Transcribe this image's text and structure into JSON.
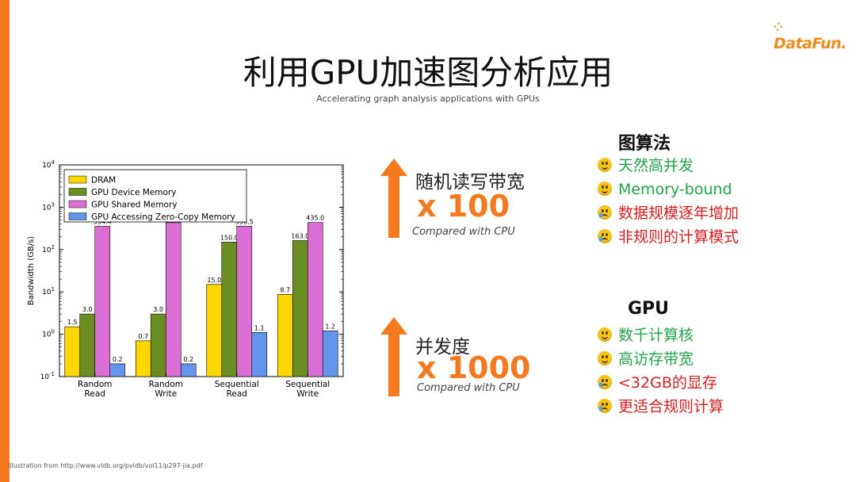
{
  "logo_text": "DataFun.",
  "title": "利用GPU加速图分析应用",
  "subtitle": "Accelerating graph analysis applications with GPUs",
  "stats": [
    {
      "label": "随机读写带宽",
      "value": "x 100",
      "note": "Compared with CPU"
    },
    {
      "label": "并发度",
      "value": "x 1000",
      "note": "Compared with CPU"
    }
  ],
  "panels": [
    {
      "heading": "图算法",
      "items": [
        {
          "text": "天然高并发",
          "mood": "good",
          "icon": "smiling-face-icon"
        },
        {
          "text": "Memory-bound",
          "mood": "good",
          "icon": "smiling-face-icon"
        },
        {
          "text": "数据规模逐年增加",
          "mood": "bad",
          "icon": "crying-face-icon"
        },
        {
          "text": "非规则的计算模式",
          "mood": "bad",
          "icon": "crying-face-icon"
        }
      ]
    },
    {
      "heading": "GPU",
      "items": [
        {
          "text": "数千计算核",
          "mood": "good",
          "icon": "smiling-face-icon"
        },
        {
          "text": "高访存带宽",
          "mood": "good",
          "icon": "smiling-face-icon"
        },
        {
          "text": "<32GB的显存",
          "mood": "bad",
          "icon": "crying-face-icon"
        },
        {
          "text": "更适合规则计算",
          "mood": "bad",
          "icon": "crying-face-icon"
        }
      ]
    }
  ],
  "footnote": "Illustration from http://www.vldb.org/pvldb/vol11/p297-jia.pdf",
  "colors": {
    "accent": "#f4791f",
    "good": "#22a34a",
    "bad": "#d42020"
  },
  "chart_data": {
    "type": "bar",
    "categories": [
      "Random\nRead",
      "Random\nWrite",
      "Sequential\nRead",
      "Sequential\nWrite"
    ],
    "series": [
      {
        "name": "DRAM",
        "color": "#ffd700",
        "values": [
          1.5,
          0.7,
          15.0,
          8.7
        ],
        "labels": [
          "1.5",
          "0.7",
          "15.0",
          "8.7"
        ]
      },
      {
        "name": "GPU Device Memory",
        "color": "#6b8e23",
        "values": [
          3.0,
          3.0,
          150.0,
          163.0
        ],
        "labels": [
          "3.0",
          "3.0",
          "150.0",
          "163.0"
        ]
      },
      {
        "name": "GPU Shared Memory",
        "color": "#da70d6",
        "values": [
          354.4,
          432.1,
          356.5,
          435.0
        ],
        "labels": [
          "354.4",
          "432.1",
          "356.5",
          "435.0"
        ]
      },
      {
        "name": "GPU Accessing Zero-Copy Memory",
        "color": "#6495ed",
        "values": [
          0.2,
          0.2,
          1.1,
          1.2
        ],
        "labels": [
          "0.2",
          "0.2",
          "1.1",
          "1.2"
        ]
      }
    ],
    "ylabel": "Bandwidth (GB/s)",
    "yscale": "log",
    "ylim": [
      0.1,
      10000
    ],
    "yticks": [
      {
        "base": "10",
        "exp": "-1"
      },
      {
        "base": "10",
        "exp": "0"
      },
      {
        "base": "10",
        "exp": "1"
      },
      {
        "base": "10",
        "exp": "2"
      },
      {
        "base": "10",
        "exp": "3"
      },
      {
        "base": "10",
        "exp": "4"
      }
    ],
    "legend_position": "upper-left",
    "grid": false
  }
}
